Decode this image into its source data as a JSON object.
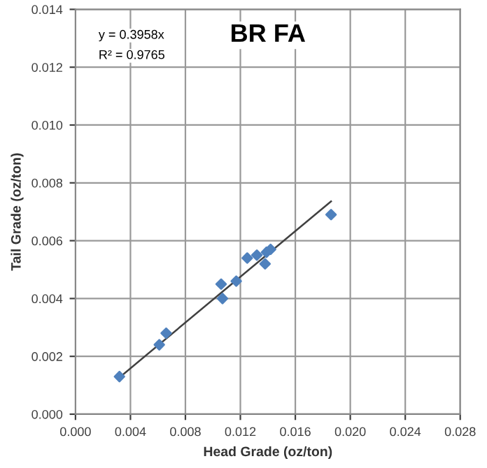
{
  "chart_data": {
    "type": "scatter",
    "title": "BR FA",
    "xlabel": "Head Grade (oz/ton)",
    "ylabel": "Tail Grade (oz/ton)",
    "annotations": [
      "y = 0.3958x",
      "R² = 0.9765"
    ],
    "series": [
      {
        "color": "#4f81bd",
        "marker": "diamond",
        "x": [
          0.0032,
          0.0061,
          0.0066,
          0.0106,
          0.0107,
          0.0117,
          0.0125,
          0.0132,
          0.0138,
          0.0139,
          0.0142,
          0.0186
        ],
        "values": [
          0.0013,
          0.0024,
          0.0028,
          0.0045,
          0.004,
          0.0046,
          0.0054,
          0.0055,
          0.0052,
          0.0056,
          0.0057,
          0.0069
        ]
      },
      {
        "type": "line",
        "color": "#404040",
        "marker": "none",
        "line_style": "solid",
        "x": [
          0.0032,
          0.0186
        ],
        "values": [
          0.00127,
          0.00736
        ]
      }
    ],
    "xlim": [
      0,
      0.028
    ],
    "xticks": [
      {
        "value": 0,
        "label": "0.000"
      },
      {
        "value": 0.004,
        "label": "0.004"
      },
      {
        "value": 0.008,
        "label": "0.008"
      },
      {
        "value": 0.012,
        "label": "0.012"
      },
      {
        "value": 0.016,
        "label": "0.016"
      },
      {
        "value": 0.02,
        "label": "0.020"
      },
      {
        "value": 0.024,
        "label": "0.024"
      },
      {
        "value": 0.028,
        "label": "0.028"
      }
    ],
    "ylim": [
      0,
      0.014
    ],
    "yticks": [
      {
        "value": 0,
        "label": "0.000"
      },
      {
        "value": 0.002,
        "label": "0.002"
      },
      {
        "value": 0.004,
        "label": "0.004"
      },
      {
        "value": 0.006,
        "label": "0.006"
      },
      {
        "value": 0.008,
        "label": "0.008"
      },
      {
        "value": 0.01,
        "label": "0.010"
      },
      {
        "value": 0.012,
        "label": "0.012"
      },
      {
        "value": 0.014,
        "label": "0.014"
      }
    ],
    "grid": true,
    "legend": false
  }
}
